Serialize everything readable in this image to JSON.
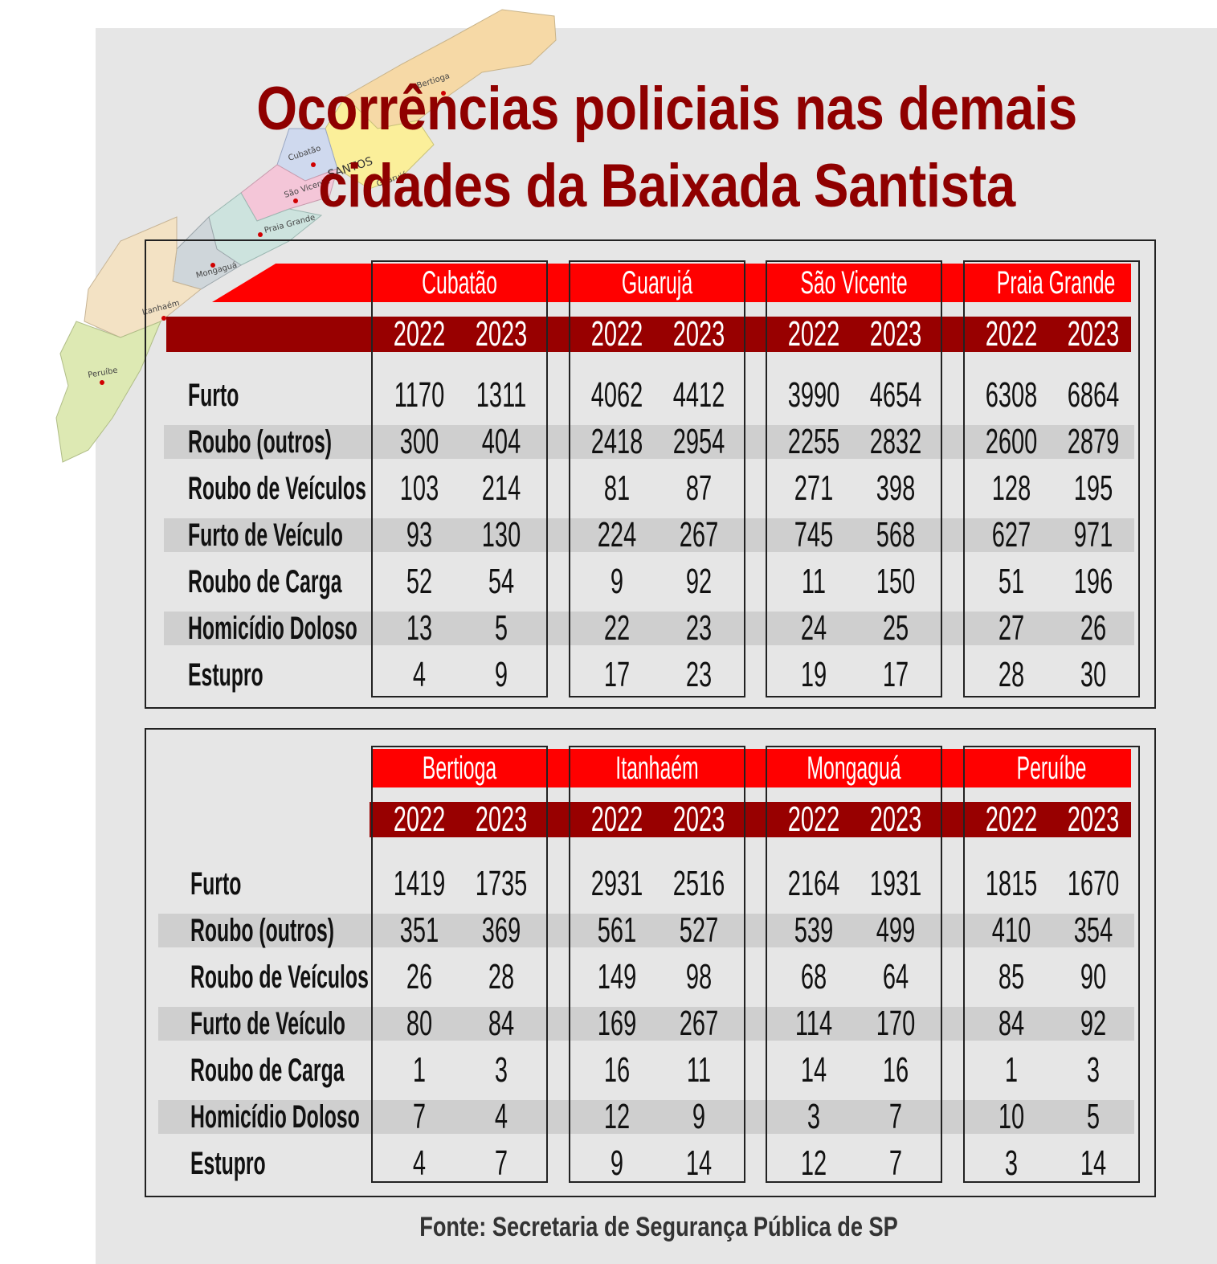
{
  "title": "Ocorrências policiais nas demais cidades da Baixada Santista",
  "source": "Fonte: Secretaria de Segurança Pública de SP",
  "map": {
    "labels": [
      "Bertioga",
      "Cubatão",
      "SANTOS",
      "Guarujá",
      "São Vicente",
      "Praia Grande",
      "Mongaguá",
      "Itanhaém",
      "Peruíbe"
    ],
    "colors": {
      "bertioga": "#f6d9a6",
      "guaruja": "#fbef9a",
      "cubatao": "#cfd9ee",
      "saovicente": "#f4c6d8",
      "praiagrande": "#cde3de",
      "mongagua": "#cfd6da",
      "itanhaem": "#f3e2c4",
      "peruibe": "#dde9b3"
    }
  },
  "colors": {
    "title": "#8f0000",
    "city_band": "#ff0000",
    "year_band": "#980000",
    "stripe": "#cfcfcf",
    "panel": "#e6e6e6"
  },
  "chart_data": [
    {
      "type": "table",
      "years": [
        "2022",
        "2023"
      ],
      "rows": [
        "Furto",
        "Roubo (outros)",
        "Roubo de Veículos",
        "Furto de Veículo",
        "Roubo de Carga",
        "Homicídio Doloso",
        "Estupro"
      ],
      "cities": [
        {
          "name": "Cubatão",
          "values": [
            [
              "1170",
              "1311"
            ],
            [
              "300",
              "404"
            ],
            [
              "103",
              "214"
            ],
            [
              "93",
              "130"
            ],
            [
              "52",
              "54"
            ],
            [
              "13",
              "5"
            ],
            [
              "4",
              "9"
            ]
          ]
        },
        {
          "name": "Guarujá",
          "values": [
            [
              "4062",
              "4412"
            ],
            [
              "2418",
              "2954"
            ],
            [
              "81",
              "87"
            ],
            [
              "224",
              "267"
            ],
            [
              "9",
              "92"
            ],
            [
              "22",
              "23"
            ],
            [
              "17",
              "23"
            ]
          ]
        },
        {
          "name": "São Vicente",
          "values": [
            [
              "3990",
              "4654"
            ],
            [
              "2255",
              "2832"
            ],
            [
              "271",
              "398"
            ],
            [
              "745",
              "568"
            ],
            [
              "11",
              "150"
            ],
            [
              "24",
              "25"
            ],
            [
              "19",
              "17"
            ]
          ]
        },
        {
          "name": "Praia Grande",
          "values": [
            [
              "6308",
              "6864"
            ],
            [
              "2600",
              "2879"
            ],
            [
              "128",
              "195"
            ],
            [
              "627",
              "971"
            ],
            [
              "51",
              "196"
            ],
            [
              "27",
              "26"
            ],
            [
              "28",
              "30"
            ]
          ]
        }
      ]
    },
    {
      "type": "table",
      "years": [
        "2022",
        "2023"
      ],
      "rows": [
        "Furto",
        "Roubo (outros)",
        "Roubo de Veículos",
        "Furto de Veículo",
        "Roubo de Carga",
        "Homicídio Doloso",
        "Estupro"
      ],
      "cities": [
        {
          "name": "Bertioga",
          "values": [
            [
              "1419",
              "1735"
            ],
            [
              "351",
              "369"
            ],
            [
              "26",
              "28"
            ],
            [
              "80",
              "84"
            ],
            [
              "1",
              "3"
            ],
            [
              "7",
              "4"
            ],
            [
              "4",
              "7"
            ]
          ]
        },
        {
          "name": "Itanhaém",
          "values": [
            [
              "2931",
              "2516"
            ],
            [
              "561",
              "527"
            ],
            [
              "149",
              "98"
            ],
            [
              "169",
              "267"
            ],
            [
              "16",
              "11"
            ],
            [
              "12",
              "9"
            ],
            [
              "9",
              "14"
            ]
          ]
        },
        {
          "name": "Mongaguá",
          "values": [
            [
              "2164",
              "1931"
            ],
            [
              "539",
              "499"
            ],
            [
              "68",
              "64"
            ],
            [
              "114",
              "170"
            ],
            [
              "14",
              "16"
            ],
            [
              "3",
              "7"
            ],
            [
              "12",
              "7"
            ]
          ]
        },
        {
          "name": "Peruíbe",
          "values": [
            [
              "1815",
              "1670"
            ],
            [
              "410",
              "354"
            ],
            [
              "85",
              "90"
            ],
            [
              "84",
              "92"
            ],
            [
              "1",
              "3"
            ],
            [
              "10",
              "5"
            ],
            [
              "3",
              "14"
            ]
          ]
        }
      ]
    }
  ]
}
